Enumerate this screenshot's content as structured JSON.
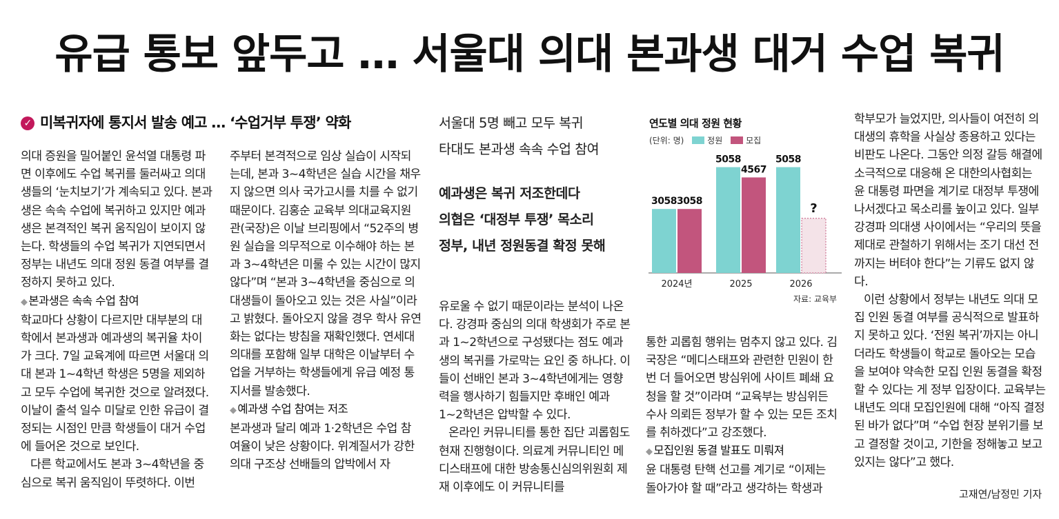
{
  "headline": "유급 통보 앞두고 … 서울대 의대 본과생 대거 수업 복귀",
  "kicker": "미복귀자에 통지서 발송 예고 … ‘수업거부 투쟁’ 약화",
  "column1": {
    "p1": "의대 증원을 밀어붙인 윤석열 대통령 파면 이후에도 수업 복귀를 둘러싸고 의대생들의 ‘눈치보기’가 계속되고 있다. 본과생은 속속 수업에 복귀하고 있지만 예과생은 본격적인 복귀 움직임이 보이지 않는다. 학생들의 수업 복귀가 지연되면서 정부는 내년도 의대 정원 동결 여부를 결정하지 못하고 있다.",
    "sub1": "본과생은 속속 수업 참여",
    "p2": "학교마다 상황이 다르지만 대부분의 대학에서 본과생과 예과생의 복귀율 차이가 크다. 7일 교육계에 따르면 서울대 의대 본과 1~4학년 학생은 5명을 제외하고 모두 수업에 복귀한 것으로 알려졌다. 이날이 출석 일수 미달로 인한 유급이 결정되는 시점인 만큼 학생들이 대거 수업에 들어온 것으로 보인다.",
    "p3": "다른 학교에서도 본과 3~4학년을 중심으로 복귀 움직임이 뚜렷하다. 이번"
  },
  "column2": {
    "p1": "주부터 본격적으로 임상 실습이 시작되는데, 본과 3~4학년은 실습 시간을 채우지 않으면 의사 국가고시를 치를 수 없기 때문이다. 김홍순 교육부 의대교육지원관(국장)은 이날 브리핑에서 “52주의 병원 실습을 의무적으로 이수해야 하는 본과 3~4학년은 미룰 수 있는 시간이 많지 않다”며 “본과 3~4학년을 중심으로 의대생들이 돌아오고 있는 것은 사실”이라고 밝혔다. 돌아오지 않을 경우 학사 유연화는 없다는 방침을 재확인했다. 연세대 의대를 포함해 일부 대학은 이날부터 수업을 거부하는 학생들에게 유급 예정 통지서를 발송했다.",
    "sub2": "예과생 수업 참여는 저조",
    "p2": "본과생과 달리 예과 1·2학년은 수업 참여율이 낮은 상황이다. 위계질서가 강한 의대 구조상 선배들의 압박에서 자"
  },
  "deck": {
    "line1": "서울대 5명 빼고 모두 복귀",
    "line2": "타대도 본과생 속속 수업 참여",
    "line3": "예과생은 복귀 저조한데다",
    "line4": "의협은 ‘대정부 투쟁’ 목소리",
    "line5": "정부, 내년 정원동결 확정 못해"
  },
  "column3": {
    "p1": "유로울 수 없기 때문이라는 분석이 나온다. 강경파 중심의 의대 학생회가 주로 본과 1~2학년으로 구성됐다는 점도 예과생의 복귀를 가로막는 요인 중 하나다. 이들이 선배인 본과 3~4학년에게는 영향력을 행사하기 힘들지만 후배인 예과 1~2학년은 압박할 수 있다.",
    "p2": "온라인 커뮤니티를 통한 집단 괴롭힘도 현재 진행형이다. 의료계 커뮤니티인 메디스태프에 대한 방송통신심의위원회 제재 이후에도 이 커뮤니티를"
  },
  "column4": {
    "p1": "통한 괴롭힘 행위는 멈추지 않고 있다. 김 국장은 “메디스태프와 관련한 민원이 한 번 더 들어오면 방심위에 사이트 폐쇄 요청을 할 것”이라며 “교육부는 방심위든 수사 의뢰든 정부가 할 수 있는 모든 조치를 취하겠다”고 강조했다.",
    "sub3": "모집인원 동결 발표도 미뤄져",
    "p2": "윤 대통령 탄핵 선고를 계기로 “이제는 돌아가야 할 때”라고 생각하는 학생과"
  },
  "column5": {
    "p1": "학부모가 늘었지만, 의사들이 여전히 의대생의 휴학을 사실상 종용하고 있다는 비판도 나온다. 그동안 의정 갈등 해결에 소극적으로 대응해 온 대한의사협회는 윤 대통령 파면을 계기로 대정부 투쟁에 나서겠다고 목소리를 높이고 있다. 일부 강경파 의대생 사이에서는 “우리의 뜻을 제대로 관철하기 위해서는 조기 대선 전까지는 버텨야 한다”는 기류도 없지 않다.",
    "p2": "이런 상황에서 정부는 내년도 의대 모집 인원 동결 여부를 공식적으로 발표하지 못하고 있다. ‘전원 복귀’까지는 아니더라도 학생들이 학교로 돌아오는 모습을 보여야 약속한 모집 인원 동결을 확정할 수 있다는 게 정부 입장이다. 교육부는 내년도 의대 모집인원에 대해 “아직 결정된 바가 없다”며 “수업 현장 분위기를 보고 결정할 것이고, 기한을 정해놓고 보고 있지는 않다”고 했다.",
    "byline": "고재연/남정민 기자"
  },
  "chart": {
    "source": "자료: 교육부",
    "unit_label": "(단위: 명)"
  },
  "chart_data": {
    "type": "bar",
    "title": "연도별 의대 정원 현황",
    "categories": [
      "2024년",
      "2025",
      "2026"
    ],
    "series": [
      {
        "name": "정원",
        "values": [
          3058,
          5058,
          5058
        ],
        "labels": [
          "3058",
          "5058",
          "5058"
        ],
        "color": "#7ed3d1"
      },
      {
        "name": "모집",
        "values": [
          3058,
          4567,
          null
        ],
        "labels": [
          "3058",
          "4567",
          "?"
        ],
        "color": "#c2557d"
      }
    ],
    "ylim": [
      0,
      5800
    ],
    "unknown_bar_color": "#f4e3e8",
    "legend": "top-left",
    "grid": false
  }
}
